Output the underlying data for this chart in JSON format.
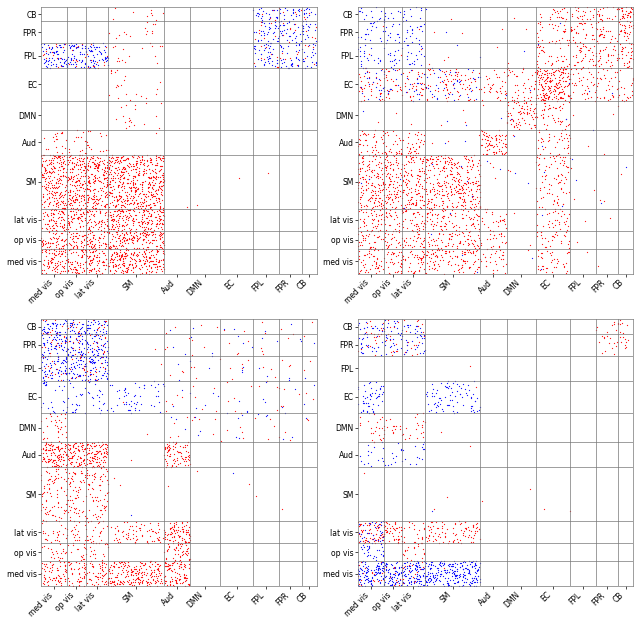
{
  "network_labels_y": [
    "CB",
    "FPR",
    "FPL",
    "EC",
    "DMN",
    "Aud",
    "SM",
    "lat vis",
    "op vis",
    "med vis"
  ],
  "network_labels_x": [
    "med vis",
    "op vis",
    "lat vis",
    "SM",
    "Aud",
    "DMN",
    "EC",
    "FPL",
    "FPR",
    "CB"
  ],
  "network_sizes": [
    8,
    12,
    14,
    18,
    16,
    14,
    30,
    12,
    10,
    14
  ],
  "bg_color": "#dce4f0",
  "red_color": "#ff2020",
  "blue_color": "#2020ff",
  "figsize": [
    6.4,
    6.25
  ],
  "dpi": 100
}
